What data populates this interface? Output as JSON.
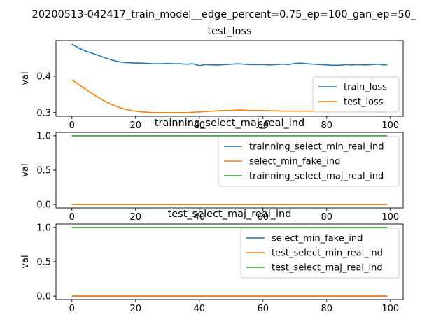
{
  "figure": {
    "suptitle": "20200513-042417_train_model__edge_percent=0.75_ep=100_gan_ep=50_"
  },
  "chart_data": [
    {
      "type": "line",
      "title": "test_loss",
      "xlabel": "",
      "ylabel": "val",
      "xlim": [
        -5,
        104
      ],
      "ylim": [
        0.29,
        0.498
      ],
      "xticks": [
        0,
        20,
        40,
        60,
        80,
        100
      ],
      "yticks": [
        0.3,
        0.4
      ],
      "ytick_labels": [
        "0.3",
        "0.4"
      ],
      "grid": false,
      "legend_position": "lower-right",
      "x": [
        0,
        2,
        4,
        6,
        8,
        10,
        12,
        14,
        16,
        18,
        20,
        22,
        24,
        26,
        28,
        30,
        32,
        34,
        36,
        38,
        40,
        42,
        44,
        46,
        48,
        50,
        52,
        54,
        56,
        58,
        60,
        62,
        64,
        66,
        68,
        70,
        72,
        74,
        76,
        78,
        80,
        82,
        84,
        86,
        88,
        90,
        92,
        94,
        96,
        98,
        99
      ],
      "series": [
        {
          "name": "train_loss",
          "color": "#1f77b4",
          "values": [
            0.488,
            0.478,
            0.47,
            0.464,
            0.458,
            0.452,
            0.446,
            0.441,
            0.438,
            0.437,
            0.436,
            0.436,
            0.435,
            0.434,
            0.434,
            0.435,
            0.434,
            0.434,
            0.433,
            0.434,
            0.429,
            0.432,
            0.431,
            0.431,
            0.432,
            0.433,
            0.434,
            0.433,
            0.432,
            0.432,
            0.432,
            0.431,
            0.432,
            0.433,
            0.432,
            0.435,
            0.436,
            0.434,
            0.433,
            0.432,
            0.431,
            0.43,
            0.43,
            0.432,
            0.431,
            0.432,
            0.431,
            0.432,
            0.433,
            0.431,
            0.432
          ]
        },
        {
          "name": "test_loss",
          "color": "#ff7f0e",
          "values": [
            0.39,
            0.378,
            0.366,
            0.354,
            0.343,
            0.333,
            0.324,
            0.317,
            0.311,
            0.307,
            0.304,
            0.302,
            0.301,
            0.3,
            0.3,
            0.3,
            0.3,
            0.3,
            0.3,
            0.301,
            0.302,
            0.303,
            0.304,
            0.305,
            0.306,
            0.306,
            0.307,
            0.307,
            0.306,
            0.306,
            0.306,
            0.305,
            0.305,
            0.304,
            0.304,
            0.304,
            0.304,
            0.304,
            0.304,
            0.304,
            0.304,
            0.304,
            0.303,
            0.303,
            0.303,
            0.303,
            0.303,
            0.303,
            0.302,
            0.302,
            0.302
          ]
        }
      ]
    },
    {
      "type": "line",
      "title": "trainning_select_maj_real_ind",
      "xlabel": "",
      "ylabel": "val",
      "xlim": [
        -5,
        104
      ],
      "ylim": [
        -0.05,
        1.05
      ],
      "xticks": [
        0,
        20,
        40,
        60,
        80,
        100
      ],
      "yticks": [
        0.0,
        0.5,
        1.0
      ],
      "ytick_labels": [
        "0.0",
        "0.5",
        "1.0"
      ],
      "grid": false,
      "legend_position": "upper-right",
      "x": [
        0,
        99
      ],
      "series": [
        {
          "name": "trainning_select_min_real_ind",
          "color": "#1f77b4",
          "values": [
            0,
            0
          ]
        },
        {
          "name": "select_min_fake_ind",
          "color": "#ff7f0e",
          "values": [
            0,
            0
          ]
        },
        {
          "name": "trainning_select_maj_real_ind",
          "color": "#2ca02c",
          "values": [
            1,
            1
          ]
        }
      ]
    },
    {
      "type": "line",
      "title": "test_select_maj_real_ind",
      "xlabel": "",
      "ylabel": "val",
      "xlim": [
        -5,
        104
      ],
      "ylim": [
        -0.05,
        1.05
      ],
      "xticks": [
        0,
        20,
        40,
        60,
        80,
        100
      ],
      "yticks": [
        0.0,
        0.5,
        1.0
      ],
      "ytick_labels": [
        "0.0",
        "0.5",
        "1.0"
      ],
      "grid": false,
      "legend_position": "upper-right",
      "x": [
        0,
        99
      ],
      "series": [
        {
          "name": "select_min_fake_ind",
          "color": "#1f77b4",
          "values": [
            0,
            0
          ]
        },
        {
          "name": "test_select_min_real_ind",
          "color": "#ff7f0e",
          "values": [
            0,
            0
          ]
        },
        {
          "name": "test_select_maj_real_ind",
          "color": "#2ca02c",
          "values": [
            1,
            1
          ]
        }
      ]
    }
  ]
}
